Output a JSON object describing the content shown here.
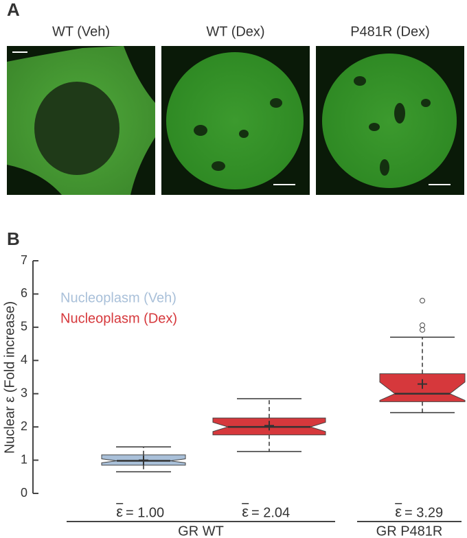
{
  "panel_a": {
    "label": "A",
    "titles": [
      "WT (Veh)",
      "WT (Dex)",
      "P481R (Dex)"
    ]
  },
  "chart_data": {
    "type": "box",
    "panel_label": "B",
    "y_label": "Nuclear ε (Fold increase)",
    "ylim": [
      0,
      7
    ],
    "yticks": [
      0,
      1,
      2,
      3,
      4,
      5,
      6,
      7
    ],
    "legend": [
      {
        "name": "Nucleoplasm (Veh)",
        "color": "#a9c0d9"
      },
      {
        "name": "Nucleoplasm (Dex)",
        "color": "#d6383c"
      }
    ],
    "mean_symbol": "ε",
    "boxes": [
      {
        "color": "#a9c0d9",
        "whisker_low": 0.65,
        "q1": 0.85,
        "notch_low": 0.92,
        "median": 0.98,
        "notch_high": 1.04,
        "q3": 1.16,
        "whisker_high": 1.4,
        "mean": 1.0,
        "value_label": "= 1.00",
        "outliers": []
      },
      {
        "color": "#d6383c",
        "whisker_low": 1.26,
        "q1": 1.76,
        "notch_low": 1.86,
        "median": 2.0,
        "notch_high": 2.14,
        "q3": 2.27,
        "whisker_high": 2.85,
        "mean": 2.04,
        "value_label": "= 2.04",
        "outliers": []
      },
      {
        "color": "#d6383c",
        "whisker_low": 2.43,
        "q1": 2.76,
        "notch_low": 2.8,
        "median": 3.0,
        "notch_high": 3.35,
        "q3": 3.6,
        "whisker_high": 4.7,
        "mean": 3.29,
        "value_label": "= 3.29",
        "outliers": [
          4.92,
          5.06,
          5.8
        ]
      }
    ],
    "groups": [
      "GR WT",
      "GR P481R"
    ]
  }
}
